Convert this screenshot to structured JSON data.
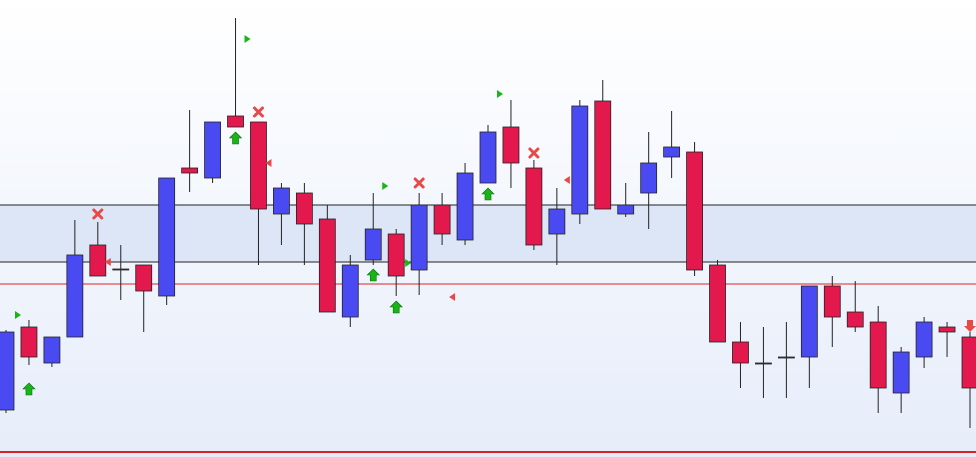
{
  "chart_data": {
    "type": "candlestick",
    "ylim": [
      0,
      457
    ],
    "up_color": "#4a4af2",
    "down_color": "#e3184c",
    "open": [
      47,
      130,
      94,
      120,
      212,
      188,
      192,
      161,
      289,
      279,
      341,
      335,
      243,
      264,
      238,
      140,
      197,
      223,
      187,
      252,
      217,
      274,
      330,
      289,
      223,
      243,
      356,
      243,
      264,
      300,
      305,
      192,
      115,
      94,
      100,
      100,
      171,
      145,
      135,
      64,
      100,
      130,
      120
    ],
    "close": [
      125,
      100,
      120,
      202,
      181,
      187,
      166,
      279,
      284,
      335,
      330,
      248,
      269,
      233,
      145,
      192,
      228,
      181,
      252,
      223,
      284,
      325,
      294,
      212,
      248,
      351,
      248,
      252,
      294,
      310,
      187,
      115,
      94,
      93,
      99,
      171,
      140,
      130,
      69,
      105,
      135,
      125,
      69
    ],
    "high": [
      127,
      137,
      120,
      237,
      235,
      212,
      192,
      279,
      347,
      335,
      439,
      335,
      274,
      274,
      252,
      202,
      264,
      228,
      264,
      264,
      294,
      332,
      357,
      297,
      269,
      357,
      377,
      274,
      325,
      346,
      315,
      197,
      135,
      130,
      135,
      171,
      181,
      176,
      151,
      110,
      140,
      135,
      125
    ],
    "low": [
      44,
      92,
      90,
      120,
      181,
      157,
      125,
      152,
      265,
      274,
      330,
      192,
      212,
      192,
      145,
      130,
      192,
      161,
      162,
      212,
      212,
      274,
      269,
      207,
      192,
      233,
      248,
      240,
      228,
      279,
      181,
      115,
      69,
      59,
      59,
      69,
      110,
      125,
      44,
      44,
      89,
      100,
      29
    ],
    "zone": {
      "range": [
        195,
        252
      ],
      "color": "#dce6f7"
    },
    "hlines": [
      {
        "value": 252,
        "color": "#222222",
        "width": 1
      },
      {
        "value": 195,
        "color": "#222222",
        "width": 1
      },
      {
        "value": 173,
        "color": "#e02020",
        "width": 1
      },
      {
        "value": 5,
        "color": "#e02020",
        "width": 2
      }
    ],
    "markers": [
      {
        "kind": "up-arrow",
        "index": 1,
        "value": 68
      },
      {
        "kind": "up-arrow",
        "index": 10,
        "value": 319
      },
      {
        "kind": "up-arrow",
        "index": 16,
        "value": 182
      },
      {
        "kind": "up-arrow",
        "index": 17,
        "value": 150
      },
      {
        "kind": "up-arrow",
        "index": 21,
        "value": 263
      },
      {
        "kind": "cross",
        "index": 4,
        "value": 243
      },
      {
        "kind": "cross",
        "index": 11,
        "value": 345
      },
      {
        "kind": "cross",
        "index": 18,
        "value": 274
      },
      {
        "kind": "cross",
        "index": 23,
        "value": 304
      },
      {
        "kind": "triangle-right",
        "index": 0,
        "value": 142
      },
      {
        "kind": "triangle-right",
        "index": 10,
        "value": 418
      },
      {
        "kind": "triangle-right",
        "index": 16,
        "value": 271
      },
      {
        "kind": "triangle-right",
        "index": 21,
        "value": 363
      },
      {
        "kind": "triangle-right",
        "index": 17,
        "value": 194
      },
      {
        "kind": "triangle-left",
        "index": 4,
        "value": 195
      },
      {
        "kind": "triangle-left",
        "index": 11,
        "value": 294
      },
      {
        "kind": "triangle-left",
        "index": 19,
        "value": 160
      },
      {
        "kind": "triangle-left",
        "index": 24,
        "value": 277
      },
      {
        "kind": "down-arrow",
        "index": 42,
        "value": 131
      }
    ]
  }
}
